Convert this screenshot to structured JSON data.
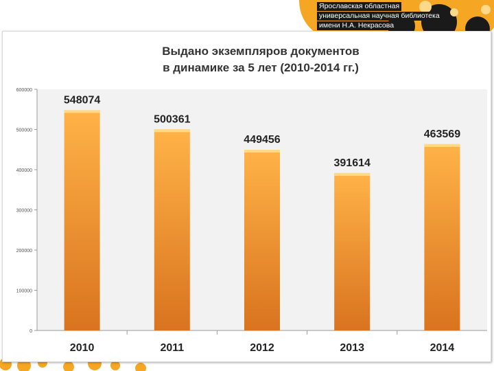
{
  "header": {
    "logo_lines": [
      "Ярославская областная",
      "универсальная научная библиотека",
      "имени Н.А. Некрасова"
    ]
  },
  "colors": {
    "bar_top": "#ffb347",
    "bar_bottom": "#d9731f",
    "bar_cap": "#ffd98a",
    "decor_orange": "#f5a623",
    "decor_dark": "#1a1a1a"
  },
  "chart_data": {
    "type": "bar",
    "title": [
      "Выдано экземпляров документов",
      "в динамике за 5 лет (2010-2014 гг.)"
    ],
    "categories": [
      "2010",
      "2011",
      "2012",
      "2013",
      "2014"
    ],
    "values": [
      548074,
      500361,
      449456,
      391614,
      463569
    ],
    "value_labels": [
      "548074",
      "500361",
      "449456",
      "391614",
      "463569"
    ],
    "ylim": [
      0,
      600000
    ],
    "yticks": [
      "0",
      "100000",
      "200000",
      "300000",
      "400000",
      "500000",
      "600000"
    ],
    "grid": false,
    "legend": "none"
  }
}
